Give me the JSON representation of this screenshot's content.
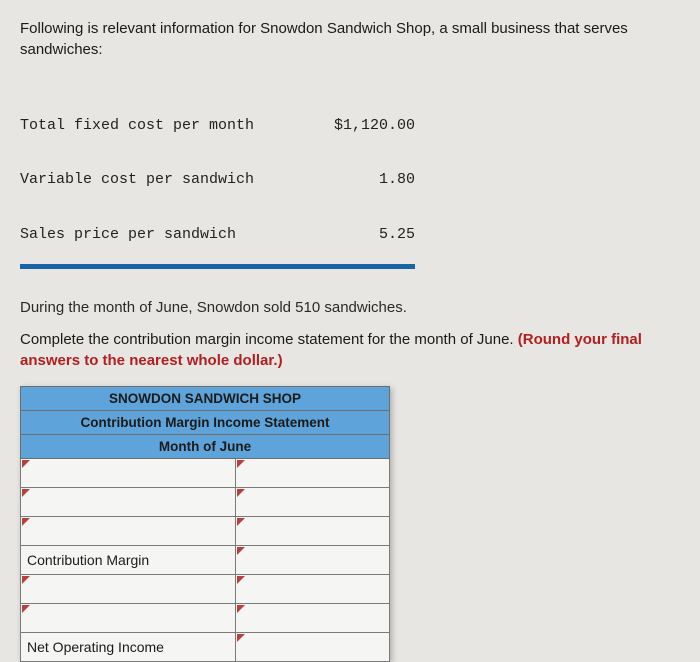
{
  "intro": "Following is relevant information for Snowdon Sandwich Shop, a small business that serves sandwiches:",
  "costs": {
    "rows": [
      {
        "label": "Total fixed cost per month",
        "value": "$1,120.00"
      },
      {
        "label": "Variable cost per sandwich",
        "value": "1.80"
      },
      {
        "label": "Sales price per sandwich",
        "value": "5.25"
      }
    ],
    "border_color": "#1964a6"
  },
  "during": "During the month of June, Snowdon sold 510 sandwiches.",
  "instruction_plain": "Complete the contribution margin income statement for the month of June. ",
  "instruction_red": "(Round your final answers to the nearest whole dollar.)",
  "worksheet": {
    "header1": "SNOWDON SANDWICH SHOP",
    "header2": "Contribution Margin Income Statement",
    "header3": "Month of June",
    "header_bg": "#5ea3da",
    "rows": [
      {
        "label": "",
        "has_dropdown": true
      },
      {
        "label": "",
        "has_dropdown": true
      },
      {
        "label": "",
        "has_dropdown": true
      },
      {
        "label": "Contribution Margin",
        "has_dropdown": false
      },
      {
        "label": "",
        "has_dropdown": true
      },
      {
        "label": "",
        "has_dropdown": true
      },
      {
        "label": "Net Operating Income",
        "has_dropdown": false
      }
    ]
  }
}
